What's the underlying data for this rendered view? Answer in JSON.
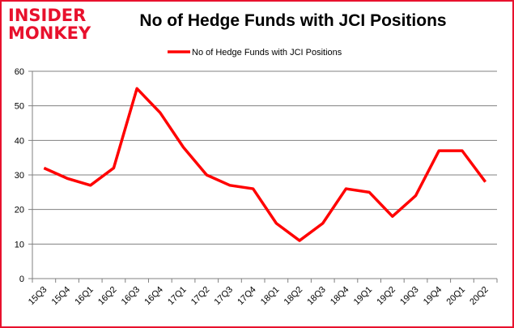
{
  "logo": {
    "line1": "INSIDER",
    "line2": "MONKEY"
  },
  "chart_data": {
    "type": "line",
    "title": "No of Hedge Funds with JCI Positions",
    "xlabel": "",
    "ylabel": "",
    "ylim": [
      0,
      60
    ],
    "yticks": [
      0,
      10,
      20,
      30,
      40,
      50,
      60
    ],
    "grid": true,
    "legend": "top",
    "categories": [
      "15Q3",
      "15Q4",
      "16Q1",
      "16Q2",
      "16Q3",
      "16Q4",
      "17Q1",
      "17Q2",
      "17Q3",
      "17Q4",
      "18Q1",
      "18Q2",
      "18Q3",
      "18Q4",
      "19Q1",
      "19Q2",
      "19Q3",
      "19Q4",
      "20Q1",
      "20Q2"
    ],
    "series": [
      {
        "name": "No of Hedge Funds with JCI Positions",
        "color": "#ff0000",
        "values": [
          32,
          29,
          27,
          32,
          55,
          48,
          38,
          30,
          27,
          26,
          16,
          11,
          16,
          26,
          25,
          18,
          24,
          37,
          37,
          28
        ]
      }
    ]
  }
}
